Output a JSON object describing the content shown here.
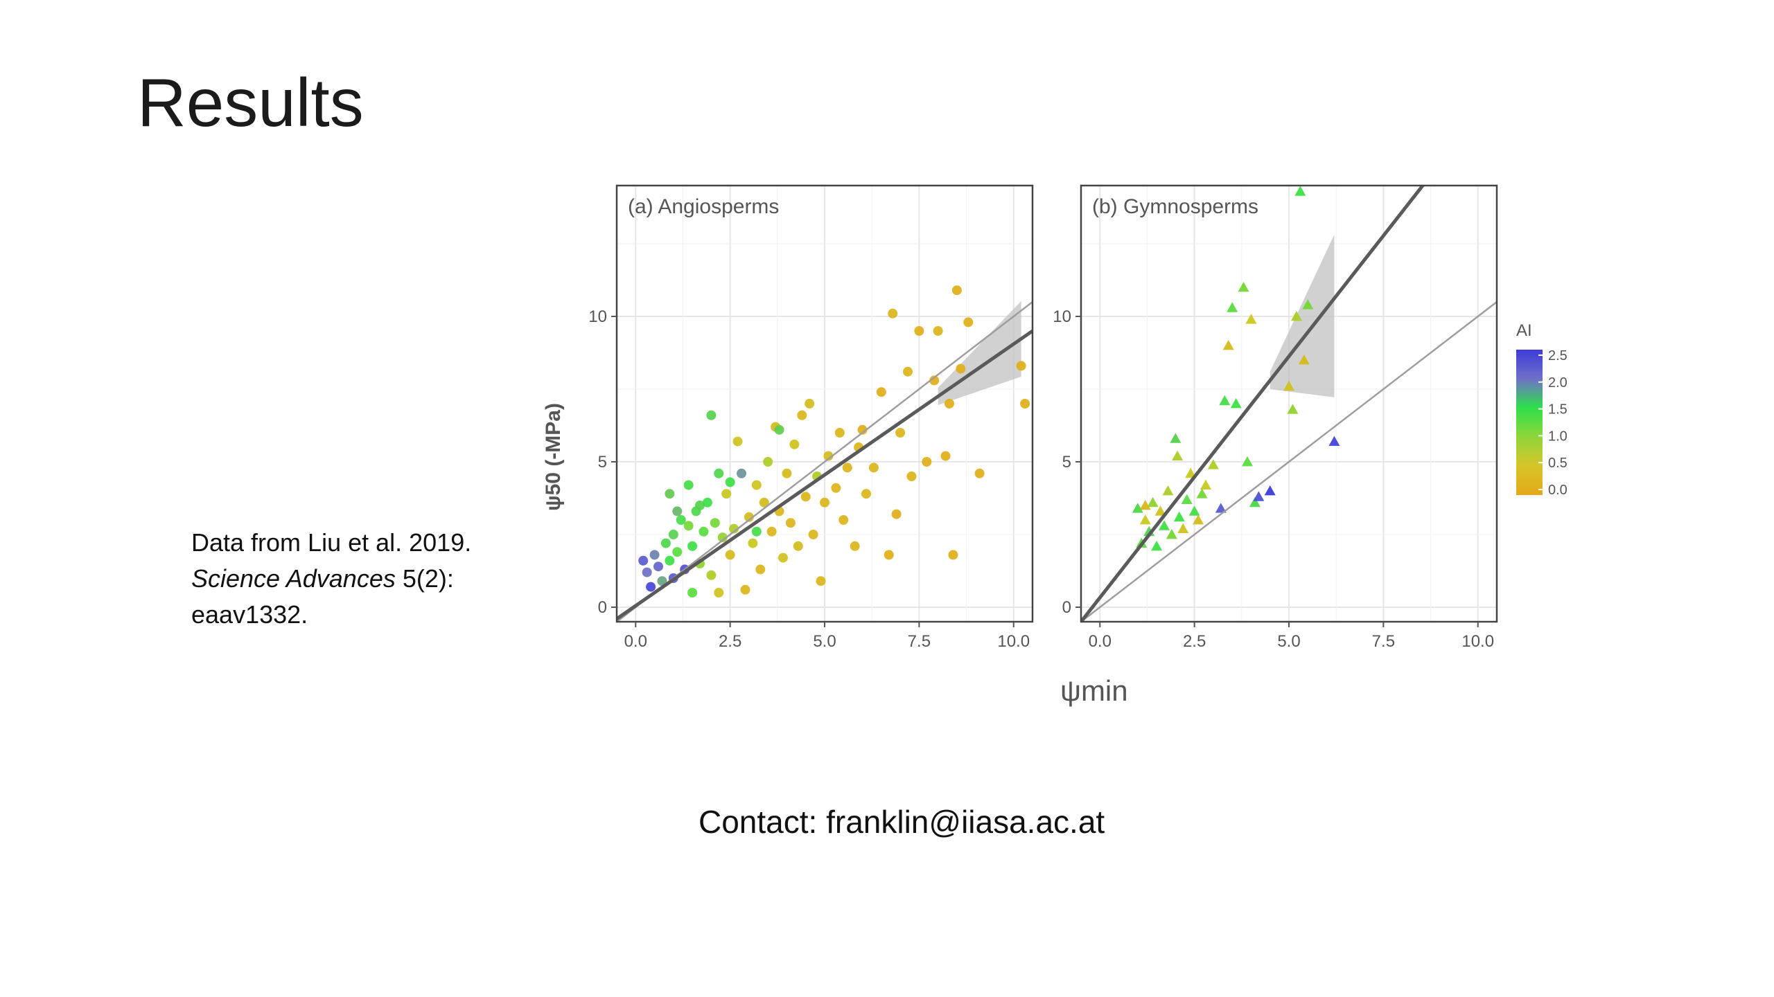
{
  "slide": {
    "title": "Results",
    "citation_line1": "Data from Liu et al. 2019.",
    "citation_journal": "Science Advances",
    "citation_issue": " 5(2):",
    "citation_line3": "eaav1332.",
    "contact": "Contact: franklin@iiasa.ac.at"
  },
  "chart_data": {
    "type": "scatter",
    "xlabel": "ψmin",
    "ylabel": "ψ50 (-MPa)",
    "xticks": [
      0.0,
      2.5,
      5.0,
      7.5,
      10.0
    ],
    "yticks": [
      0,
      5,
      10
    ],
    "grid": true,
    "legend": {
      "title": "AI",
      "placement": "right",
      "ticks": [
        "2.5",
        "2.0",
        "1.5",
        "1.0",
        "0.5",
        "0.0"
      ],
      "colors": [
        "#3b3bd9",
        "#6a6ad0",
        "#2ee04a",
        "#9acd32",
        "#e6a817"
      ]
    },
    "panels": [
      {
        "title": "(a) Angiosperms",
        "marker": "circle",
        "xlim": [
          -0.5,
          10.5
        ],
        "ylim": [
          -0.5,
          14.5
        ],
        "one_to_one_line": true,
        "fit_line": {
          "x": [
            -0.5,
            10.5
          ],
          "y": [
            -0.4,
            9.5
          ]
        },
        "points": [
          [
            0.2,
            1.6,
            2.2
          ],
          [
            0.3,
            1.2,
            2.0
          ],
          [
            0.4,
            0.7,
            2.4
          ],
          [
            0.5,
            1.8,
            1.9
          ],
          [
            0.6,
            1.4,
            2.1
          ],
          [
            0.7,
            0.9,
            1.7
          ],
          [
            0.8,
            2.2,
            1.2
          ],
          [
            0.9,
            1.6,
            1.0
          ],
          [
            1.0,
            2.5,
            1.3
          ],
          [
            1.1,
            1.9,
            0.9
          ],
          [
            1.2,
            3.0,
            1.1
          ],
          [
            1.3,
            1.3,
            2.3
          ],
          [
            1.4,
            2.8,
            0.8
          ],
          [
            1.5,
            2.1,
            1.0
          ],
          [
            1.6,
            3.3,
            1.2
          ],
          [
            1.7,
            1.5,
            0.7
          ],
          [
            1.8,
            2.6,
            0.9
          ],
          [
            1.9,
            3.6,
            1.0
          ],
          [
            2.0,
            1.1,
            0.6
          ],
          [
            2.1,
            2.9,
            0.8
          ],
          [
            2.2,
            0.5,
            0.4
          ],
          [
            2.3,
            2.4,
            0.7
          ],
          [
            2.4,
            3.9,
            0.5
          ],
          [
            2.5,
            1.8,
            0.3
          ],
          [
            2.6,
            2.7,
            0.6
          ],
          [
            2.7,
            5.7,
            0.4
          ],
          [
            2.8,
            4.6,
            1.8
          ],
          [
            2.9,
            0.6,
            0.2
          ],
          [
            3.0,
            3.1,
            0.3
          ],
          [
            3.1,
            2.2,
            0.5
          ],
          [
            3.2,
            4.2,
            0.4
          ],
          [
            3.3,
            1.3,
            0.2
          ],
          [
            3.4,
            3.6,
            0.3
          ],
          [
            3.5,
            5.0,
            0.6
          ],
          [
            3.6,
            2.6,
            0.2
          ],
          [
            3.7,
            6.2,
            0.3
          ],
          [
            3.8,
            3.3,
            0.2
          ],
          [
            3.9,
            1.7,
            0.4
          ],
          [
            4.0,
            4.6,
            0.3
          ],
          [
            4.1,
            2.9,
            0.2
          ],
          [
            4.2,
            5.6,
            0.4
          ],
          [
            4.3,
            2.1,
            0.3
          ],
          [
            4.4,
            6.6,
            0.2
          ],
          [
            4.5,
            3.8,
            0.2
          ],
          [
            4.6,
            7.0,
            0.3
          ],
          [
            4.7,
            2.5,
            0.2
          ],
          [
            4.8,
            4.5,
            0.6
          ],
          [
            4.9,
            0.9,
            0.2
          ],
          [
            5.0,
            3.6,
            0.2
          ],
          [
            5.1,
            5.2,
            0.3
          ],
          [
            5.3,
            4.1,
            0.2
          ],
          [
            5.4,
            6.0,
            0.2
          ],
          [
            5.5,
            3.0,
            0.2
          ],
          [
            5.6,
            4.8,
            0.2
          ],
          [
            5.8,
            2.1,
            0.2
          ],
          [
            5.9,
            5.5,
            0.2
          ],
          [
            6.0,
            6.1,
            0.1
          ],
          [
            6.1,
            3.9,
            0.2
          ],
          [
            6.3,
            4.8,
            0.2
          ],
          [
            6.5,
            7.4,
            0.1
          ],
          [
            6.7,
            1.8,
            0.1
          ],
          [
            6.8,
            10.1,
            0.2
          ],
          [
            6.9,
            3.2,
            0.1
          ],
          [
            7.0,
            6.0,
            0.2
          ],
          [
            7.2,
            8.1,
            0.2
          ],
          [
            7.3,
            4.5,
            0.2
          ],
          [
            7.5,
            9.5,
            0.1
          ],
          [
            7.7,
            5.0,
            0.1
          ],
          [
            7.9,
            7.8,
            0.1
          ],
          [
            8.0,
            9.5,
            0.2
          ],
          [
            8.2,
            5.2,
            0.1
          ],
          [
            8.3,
            7.0,
            0.1
          ],
          [
            8.4,
            1.8,
            0.1
          ],
          [
            8.5,
            10.9,
            0.1
          ],
          [
            8.6,
            8.2,
            0.1
          ],
          [
            8.8,
            9.8,
            0.1
          ],
          [
            9.1,
            4.6,
            0.1
          ],
          [
            10.2,
            8.3,
            0.1
          ],
          [
            10.3,
            7.0,
            0.1
          ],
          [
            0.9,
            3.9,
            1.5
          ],
          [
            1.4,
            4.2,
            1.1
          ],
          [
            1.7,
            3.5,
            1.3
          ],
          [
            2.2,
            4.6,
            1.2
          ],
          [
            2.0,
            6.6,
            1.3
          ],
          [
            1.0,
            1.0,
            2.2
          ],
          [
            1.5,
            0.5,
            0.9
          ],
          [
            3.8,
            6.1,
            1.4
          ],
          [
            2.5,
            4.3,
            1.0
          ],
          [
            3.2,
            2.6,
            1.1
          ],
          [
            1.1,
            3.3,
            1.6
          ]
        ]
      },
      {
        "title": "(b) Gymnosperms",
        "marker": "triangle",
        "xlim": [
          -0.5,
          10.5
        ],
        "ylim": [
          -0.5,
          14.5
        ],
        "one_to_one_line": true,
        "fit_line": {
          "x": [
            -0.5,
            8.6
          ],
          "y": [
            -0.5,
            14.6
          ]
        },
        "points": [
          [
            1.0,
            3.4,
            1.2
          ],
          [
            1.1,
            2.2,
            0.9
          ],
          [
            1.2,
            3.0,
            0.5
          ],
          [
            1.3,
            2.6,
            1.3
          ],
          [
            1.4,
            3.6,
            0.7
          ],
          [
            1.5,
            2.1,
            1.0
          ],
          [
            1.6,
            3.3,
            0.4
          ],
          [
            1.7,
            2.8,
            1.1
          ],
          [
            1.8,
            4.0,
            0.6
          ],
          [
            1.9,
            2.5,
            0.8
          ],
          [
            2.0,
            5.8,
            1.3
          ],
          [
            2.05,
            5.2,
            0.6
          ],
          [
            2.1,
            3.1,
            1.0
          ],
          [
            2.2,
            2.7,
            0.4
          ],
          [
            2.3,
            3.7,
            0.9
          ],
          [
            2.4,
            4.6,
            0.5
          ],
          [
            2.5,
            3.3,
            1.1
          ],
          [
            2.6,
            3.0,
            0.3
          ],
          [
            2.7,
            3.9,
            0.8
          ],
          [
            2.8,
            4.2,
            0.5
          ],
          [
            3.0,
            4.9,
            0.6
          ],
          [
            3.2,
            3.4,
            2.2
          ],
          [
            3.3,
            7.1,
            1.1
          ],
          [
            3.4,
            9.0,
            0.3
          ],
          [
            3.5,
            10.3,
            0.9
          ],
          [
            3.6,
            7.0,
            1.0
          ],
          [
            3.8,
            11.0,
            0.8
          ],
          [
            3.9,
            5.0,
            0.9
          ],
          [
            4.0,
            9.9,
            0.5
          ],
          [
            4.1,
            3.6,
            1.2
          ],
          [
            4.2,
            3.8,
            2.3
          ],
          [
            4.5,
            4.0,
            2.5
          ],
          [
            5.0,
            7.6,
            0.4
          ],
          [
            5.1,
            6.8,
            0.7
          ],
          [
            5.2,
            10.0,
            0.6
          ],
          [
            5.3,
            14.3,
            1.0
          ],
          [
            5.4,
            8.5,
            0.3
          ],
          [
            5.5,
            10.4,
            0.8
          ],
          [
            6.2,
            5.7,
            2.4
          ],
          [
            1.2,
            3.5,
            0.2
          ]
        ]
      }
    ]
  }
}
